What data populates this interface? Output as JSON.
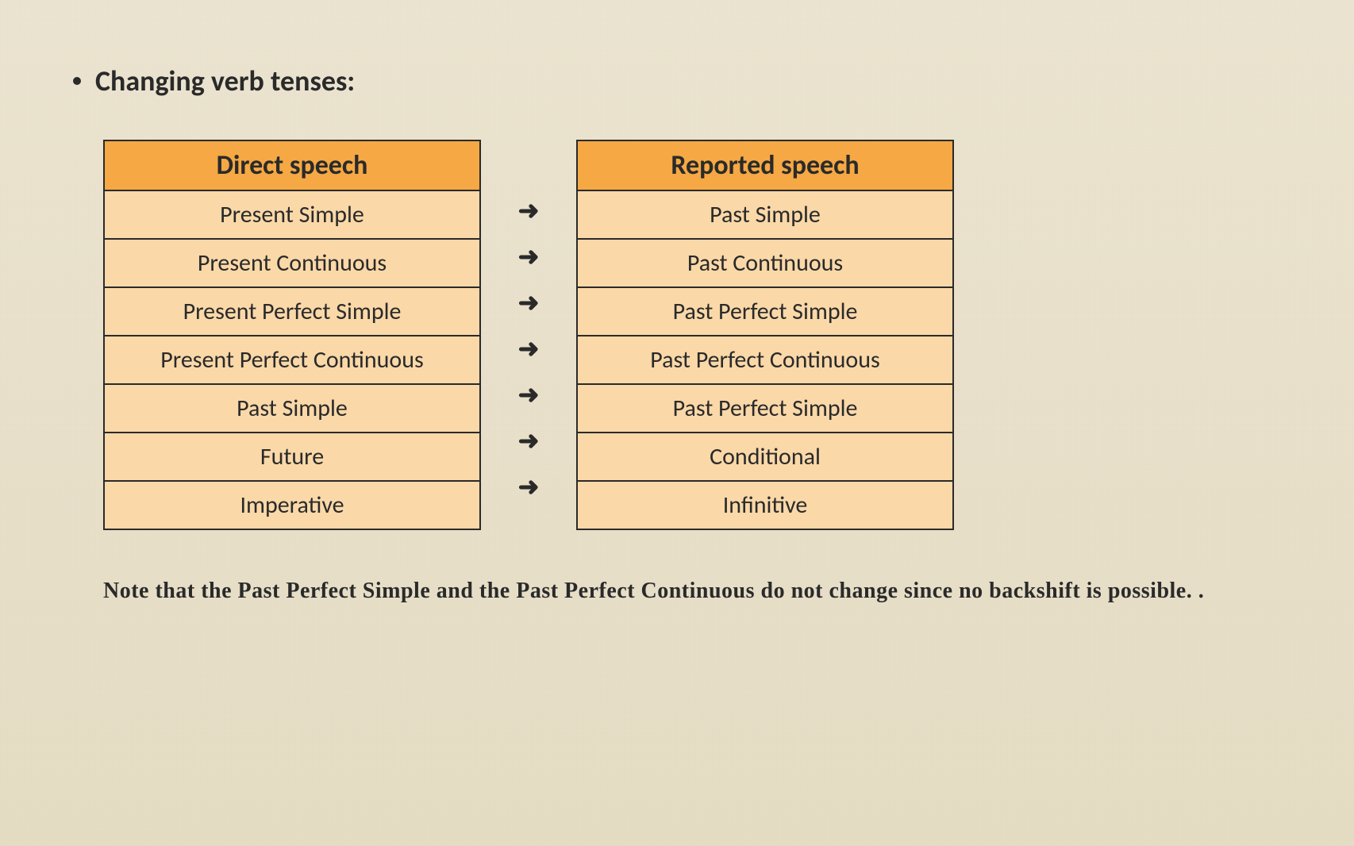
{
  "title": "Changing verb tenses:",
  "leftTable": {
    "header": "Direct speech",
    "rows": [
      "Present Simple",
      "Present Continuous",
      "Present Perfect Simple",
      "Present Perfect Continuous",
      "Past Simple",
      "Future",
      "Imperative"
    ]
  },
  "rightTable": {
    "header": "Reported speech",
    "rows": [
      "Past Simple",
      "Past Continuous",
      "Past Perfect Simple",
      "Past Perfect Continuous",
      "Past Perfect Simple",
      "Conditional",
      "Infinitive"
    ]
  },
  "arrow": "➜",
  "note": "Note that the Past Perfect Simple and the Past Perfect Continuous do not change since no backshift is possible. .",
  "colors": {
    "background": "#ebe4d0",
    "headerBg": "#f5a843",
    "rowBg": "#fad8a8",
    "border": "#2a2a2a",
    "text": "#2a2a2a"
  }
}
